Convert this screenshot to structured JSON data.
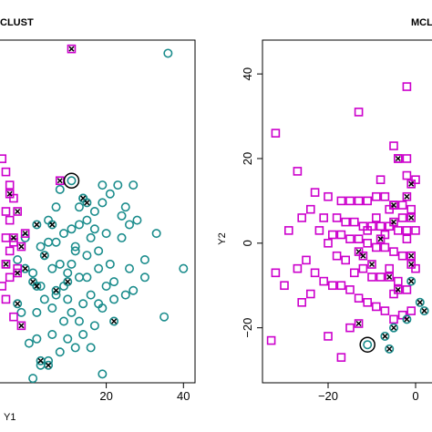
{
  "colors": {
    "teal": "#1a8c8c",
    "magenta": "#cc00cc",
    "frame": "#000000"
  },
  "chart_data": [
    {
      "type": "scatter",
      "title": "CLUST",
      "xlabel": "Y1",
      "ylabel": "",
      "xlim": [
        -8,
        43
      ],
      "ylim": [
        -28,
        50
      ],
      "xticks": [
        20,
        40
      ],
      "yticks": [],
      "series": [
        {
          "marker": "circle",
          "color": "#1a8c8c",
          "points": [
            [
              36,
              47
            ],
            [
              26,
              8
            ],
            [
              33,
              6
            ],
            [
              40,
              -2
            ],
            [
              35,
              -13
            ],
            [
              30,
              -4
            ],
            [
              27,
              -7
            ],
            [
              25,
              -8
            ],
            [
              22,
              -9
            ],
            [
              19,
              -11
            ],
            [
              20,
              -6
            ],
            [
              16,
              -8
            ],
            [
              14,
              -10
            ],
            [
              13,
              -14
            ],
            [
              15,
              -4
            ],
            [
              18,
              -2
            ],
            [
              17,
              -15
            ],
            [
              12,
              -20
            ],
            [
              10,
              -18
            ],
            [
              8,
              -21
            ],
            [
              5,
              -23
            ],
            [
              3,
              -24
            ],
            [
              2,
              -12
            ],
            [
              4,
              -9
            ],
            [
              6,
              -11
            ],
            [
              7,
              -8
            ],
            [
              9,
              -6
            ],
            [
              10,
              -3
            ],
            [
              11,
              -1
            ],
            [
              8,
              -1
            ],
            [
              6,
              -2
            ],
            [
              4,
              1
            ],
            [
              3,
              3
            ],
            [
              5,
              4
            ],
            [
              7,
              4
            ],
            [
              9,
              6
            ],
            [
              11,
              7
            ],
            [
              13,
              8
            ],
            [
              15,
              9
            ],
            [
              17,
              11
            ],
            [
              19,
              13
            ],
            [
              21,
              15
            ],
            [
              23,
              17
            ],
            [
              27,
              17
            ],
            [
              19,
              17
            ],
            [
              13,
              12
            ],
            [
              18,
              2
            ],
            [
              24,
              5
            ],
            [
              25,
              12
            ],
            [
              12,
              2
            ],
            [
              15,
              1
            ],
            [
              16,
              5
            ],
            [
              20,
              6
            ],
            [
              22,
              -5
            ],
            [
              18,
              -10
            ],
            [
              14,
              -17
            ],
            [
              9,
              -14
            ],
            [
              6,
              -17
            ],
            [
              2,
              -18
            ],
            [
              1,
              -27
            ],
            [
              19,
              -26
            ],
            [
              16,
              -20
            ],
            [
              11,
              -12
            ],
            [
              -2,
              -12
            ],
            [
              0,
              -19
            ],
            [
              1,
              -3
            ],
            [
              -3,
              0
            ],
            [
              -1,
              5
            ],
            [
              8,
              16
            ],
            [
              12,
              3
            ],
            [
              21,
              -1
            ],
            [
              24,
              10
            ],
            [
              26,
              -2
            ],
            [
              28,
              9
            ],
            [
              30,
              0
            ],
            [
              10,
              -9
            ],
            [
              13,
              -4
            ],
            [
              7,
              12
            ],
            [
              17,
              7
            ],
            [
              3,
              -6
            ],
            [
              5,
              9
            ],
            [
              14,
              14
            ]
          ]
        },
        {
          "marker": "circle-x",
          "color": "#1a8c8c",
          "points": [
            [
              14,
              14
            ],
            [
              15,
              13
            ],
            [
              6,
              8
            ],
            [
              4,
              1
            ],
            [
              -1,
              -2
            ],
            [
              1,
              -5
            ],
            [
              10,
              -5
            ],
            [
              5,
              -24
            ],
            [
              3,
              -23
            ],
            [
              -3,
              -10
            ],
            [
              2,
              -6
            ],
            [
              22,
              -14
            ],
            [
              7,
              -7
            ],
            [
              2,
              8
            ]
          ]
        },
        {
          "marker": "square",
          "color": "#cc00cc",
          "points": [
            [
              -7,
              23
            ],
            [
              -6,
              20
            ],
            [
              -5,
              17
            ],
            [
              -4,
              14
            ],
            [
              -6,
              11
            ],
            [
              -5,
              9
            ],
            [
              -6,
              5
            ],
            [
              -4,
              4
            ],
            [
              -5,
              2
            ],
            [
              -6,
              -1
            ],
            [
              -3,
              -2
            ],
            [
              -5,
              -4
            ],
            [
              -7,
              -6
            ],
            [
              -6,
              -9
            ],
            [
              -4,
              -13
            ]
          ]
        },
        {
          "marker": "square-x",
          "color": "#cc00cc",
          "points": [
            [
              11,
              48
            ],
            [
              8,
              18
            ],
            [
              -5,
              15
            ],
            [
              -3,
              11
            ],
            [
              -1,
              6
            ],
            [
              -2,
              3
            ],
            [
              -4,
              5
            ],
            [
              -6,
              -1
            ],
            [
              -3,
              -3
            ],
            [
              -2,
              -15
            ]
          ]
        },
        {
          "marker": "big-circle-dot",
          "color": "#000000",
          "points": [
            [
              11,
              18
            ]
          ]
        }
      ]
    },
    {
      "type": "scatter",
      "title": "MCL",
      "xlabel": "",
      "ylabel": "Y2",
      "xlim": [
        -35,
        5
      ],
      "ylim": [
        -33,
        48
      ],
      "xticks": [
        -20,
        0
      ],
      "yticks": [
        -20,
        0,
        20,
        40
      ],
      "series": [
        {
          "marker": "square",
          "color": "#cc00cc",
          "points": [
            [
              -2,
              37
            ],
            [
              -13,
              31
            ],
            [
              -32,
              26
            ],
            [
              -5,
              23
            ],
            [
              -4,
              20
            ],
            [
              -2,
              20
            ],
            [
              -27,
              17
            ],
            [
              -2,
              16
            ],
            [
              0,
              15
            ],
            [
              -8,
              15
            ],
            [
              -23,
              12
            ],
            [
              -20,
              11
            ],
            [
              -17,
              10
            ],
            [
              -15,
              10
            ],
            [
              -13,
              10
            ],
            [
              -11,
              10
            ],
            [
              -9,
              11
            ],
            [
              -7,
              11
            ],
            [
              -5,
              9
            ],
            [
              -3,
              9
            ],
            [
              -1,
              8
            ],
            [
              -24,
              8
            ],
            [
              -26,
              6
            ],
            [
              -21,
              6
            ],
            [
              -18,
              6
            ],
            [
              -16,
              5
            ],
            [
              -14,
              5
            ],
            [
              -12,
              4
            ],
            [
              -10,
              4
            ],
            [
              -8,
              4
            ],
            [
              -6,
              4
            ],
            [
              -4,
              3
            ],
            [
              -2,
              3
            ],
            [
              0,
              3
            ],
            [
              -29,
              3
            ],
            [
              -22,
              3
            ],
            [
              -19,
              2
            ],
            [
              -17,
              2
            ],
            [
              -15,
              1
            ],
            [
              -13,
              1
            ],
            [
              -11,
              0
            ],
            [
              -9,
              -1
            ],
            [
              -7,
              -1
            ],
            [
              -5,
              -2
            ],
            [
              -3,
              -3
            ],
            [
              -1,
              -3
            ],
            [
              -32,
              -7
            ],
            [
              -30,
              -10
            ],
            [
              -25,
              -4
            ],
            [
              -23,
              -7
            ],
            [
              -21,
              -9
            ],
            [
              -19,
              -10
            ],
            [
              -17,
              -10
            ],
            [
              -15,
              -11
            ],
            [
              -13,
              -13
            ],
            [
              -11,
              -14
            ],
            [
              -9,
              -15
            ],
            [
              -7,
              -16
            ],
            [
              -5,
              -18
            ],
            [
              -3,
              -17
            ],
            [
              -1,
              -16
            ],
            [
              -20,
              -22
            ],
            [
              -17,
              -27
            ],
            [
              -15,
              -20
            ],
            [
              -33,
              -23
            ],
            [
              -26,
              -14
            ],
            [
              -24,
              -12
            ],
            [
              -27,
              -6
            ],
            [
              -16,
              -4
            ],
            [
              -12,
              -6
            ],
            [
              -8,
              -8
            ],
            [
              -4,
              -9
            ],
            [
              -2,
              -11
            ],
            [
              -6,
              -6
            ],
            [
              -10,
              -8
            ],
            [
              -14,
              -7
            ],
            [
              -18,
              -3
            ],
            [
              -20,
              0
            ],
            [
              -9,
              6
            ],
            [
              -3,
              6
            ],
            [
              -6,
              8
            ],
            [
              -11,
              3
            ],
            [
              -7,
              2
            ],
            [
              0,
              -6
            ],
            [
              -5,
              -12
            ],
            [
              -2,
              1
            ]
          ]
        },
        {
          "marker": "square-x",
          "color": "#cc00cc",
          "points": [
            [
              -4,
              20
            ],
            [
              -1,
              14
            ],
            [
              -2,
              11
            ],
            [
              -5,
              9
            ],
            [
              -1,
              6
            ],
            [
              -5,
              5
            ],
            [
              -8,
              1
            ],
            [
              -13,
              -2
            ],
            [
              -12,
              -3
            ],
            [
              -10,
              -5
            ],
            [
              -1,
              -3
            ],
            [
              -1,
              -5
            ],
            [
              -6,
              -8
            ],
            [
              -4,
              -11
            ],
            [
              -13,
              -19
            ]
          ]
        },
        {
          "marker": "circle-x",
          "color": "#1a8c8c",
          "points": [
            [
              -1,
              -9
            ],
            [
              1,
              -14
            ],
            [
              2,
              -16
            ],
            [
              -2,
              -18
            ],
            [
              -5,
              -20
            ],
            [
              -7,
              -22
            ],
            [
              -6,
              -25
            ]
          ]
        },
        {
          "marker": "big-circle-dot",
          "color": "#000000",
          "points": [
            [
              -11,
              -24
            ]
          ]
        }
      ]
    }
  ]
}
